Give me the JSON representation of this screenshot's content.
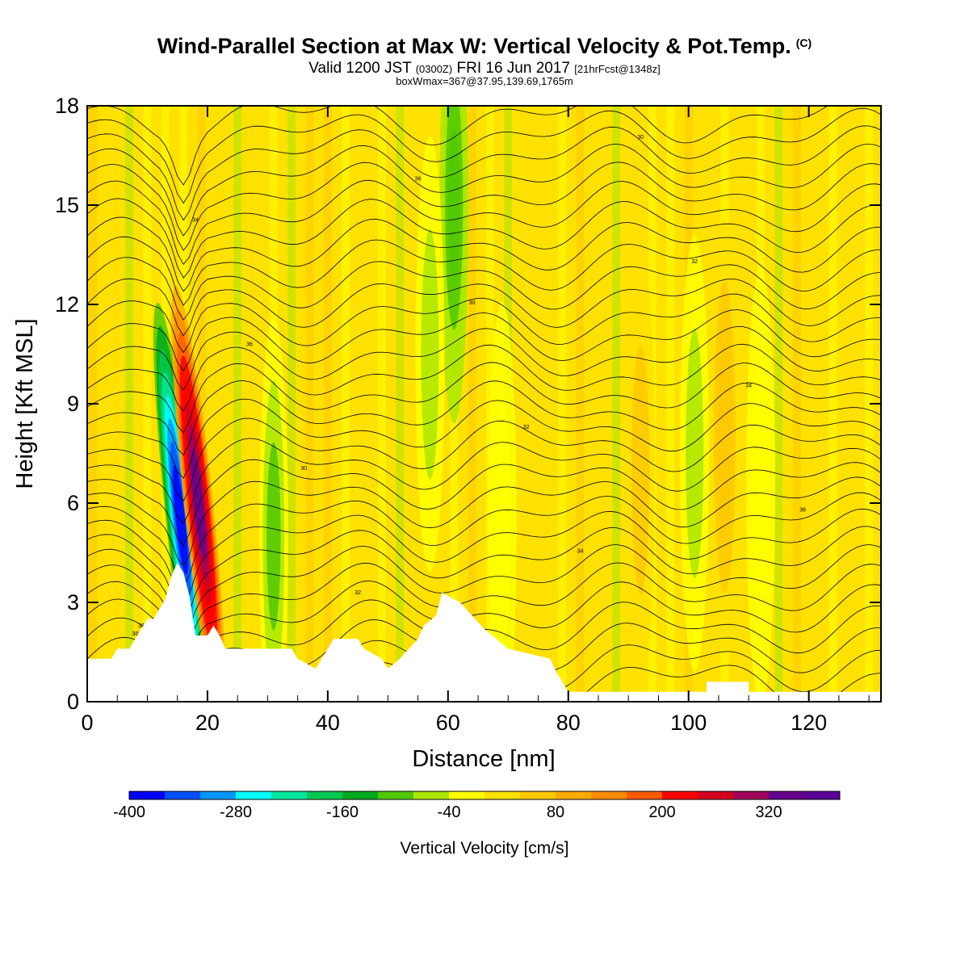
{
  "header": {
    "title": "Wind-Parallel Section at Max W: Vertical Velocity & Pot.Temp.",
    "title_mark": "(C)",
    "valid_prefix": "Valid 1200 JST",
    "valid_utc": "(0300Z)",
    "valid_date": "FRI 16 Jun 2017",
    "forecast_info": "[21hrFcst@1348z]",
    "box_info": "boxWmax=367@37.95,139.69,1765m"
  },
  "chart_data": {
    "type": "heatmap",
    "xlabel": "Distance [nm]",
    "ylabel": "Height [Kft MSL]",
    "xlim": [
      0,
      132
    ],
    "ylim": [
      0,
      18
    ],
    "x_ticks": [
      0,
      20,
      40,
      60,
      80,
      100,
      120
    ],
    "y_ticks": [
      0,
      3,
      6,
      9,
      12,
      15,
      18
    ],
    "colorbar": {
      "title": "Vertical Velocity [cm/s]",
      "min": -400,
      "max": 400,
      "step": 40,
      "tick_values": [
        -400,
        -280,
        -160,
        -40,
        80,
        200,
        320
      ],
      "colors": [
        "#0000ff",
        "#0050ff",
        "#0096ff",
        "#00ffff",
        "#00e6a0",
        "#00c850",
        "#00aa1e",
        "#50c800",
        "#aae600",
        "#ffff00",
        "#ffe100",
        "#ffc800",
        "#ffaa00",
        "#ff8c00",
        "#ff5a00",
        "#ff0000",
        "#d2001e",
        "#a0005a",
        "#64008c",
        "#5a0096"
      ]
    },
    "terrain_kft": [
      [
        0,
        1.3
      ],
      [
        4,
        1.3
      ],
      [
        5,
        1.6
      ],
      [
        7,
        1.6
      ],
      [
        8,
        1.9
      ],
      [
        9,
        2.2
      ],
      [
        10,
        2.5
      ],
      [
        11,
        2.5
      ],
      [
        12,
        2.8
      ],
      [
        13,
        3.1
      ],
      [
        14,
        3.8
      ],
      [
        15,
        4.2
      ],
      [
        16,
        3.9
      ],
      [
        17,
        3.2
      ],
      [
        18,
        2.0
      ],
      [
        20,
        2.0
      ],
      [
        21,
        2.3
      ],
      [
        22,
        2.0
      ],
      [
        23,
        1.6
      ],
      [
        34,
        1.6
      ],
      [
        35,
        1.3
      ],
      [
        38,
        1.0
      ],
      [
        39,
        1.3
      ],
      [
        40,
        1.6
      ],
      [
        41,
        1.9
      ],
      [
        45,
        1.9
      ],
      [
        46,
        1.6
      ],
      [
        49,
        1.3
      ],
      [
        50,
        1.0
      ],
      [
        52,
        1.3
      ],
      [
        55,
        1.9
      ],
      [
        56,
        2.3
      ],
      [
        58,
        2.6
      ],
      [
        59,
        3.3
      ],
      [
        62,
        3.0
      ],
      [
        64,
        2.6
      ],
      [
        66,
        2.2
      ],
      [
        68,
        1.9
      ],
      [
        70,
        1.6
      ],
      [
        77,
        1.3
      ],
      [
        78,
        0.9
      ],
      [
        80,
        0.3
      ],
      [
        103,
        0.3
      ],
      [
        103,
        0.6
      ],
      [
        110,
        0.6
      ],
      [
        110,
        0.3
      ],
      [
        132,
        0.3
      ]
    ],
    "w_features": [
      {
        "x": 15.5,
        "y": 5.5,
        "w": -400
      },
      {
        "x": 18.5,
        "y": 6.0,
        "w": 360
      },
      {
        "x": 31,
        "y": 5.0,
        "w": -120
      },
      {
        "x": 61,
        "y": 15.0,
        "w": -140
      },
      {
        "x": 57,
        "y": 10.5,
        "w": -80
      },
      {
        "x": 69,
        "y": 5.5,
        "w": -60
      },
      {
        "x": 101,
        "y": 7.5,
        "w": -80
      },
      {
        "x": 112,
        "y": 6.5,
        "w": -60
      },
      {
        "x": 106,
        "y": 8.0,
        "w": 100
      },
      {
        "x": 92,
        "y": 7.0,
        "w": 80
      }
    ],
    "theta_contour_labels": [
      "30",
      "32",
      "34",
      "36",
      "30",
      "32",
      "34",
      "36",
      "30",
      "32",
      "34",
      "36",
      "30",
      "32"
    ]
  }
}
